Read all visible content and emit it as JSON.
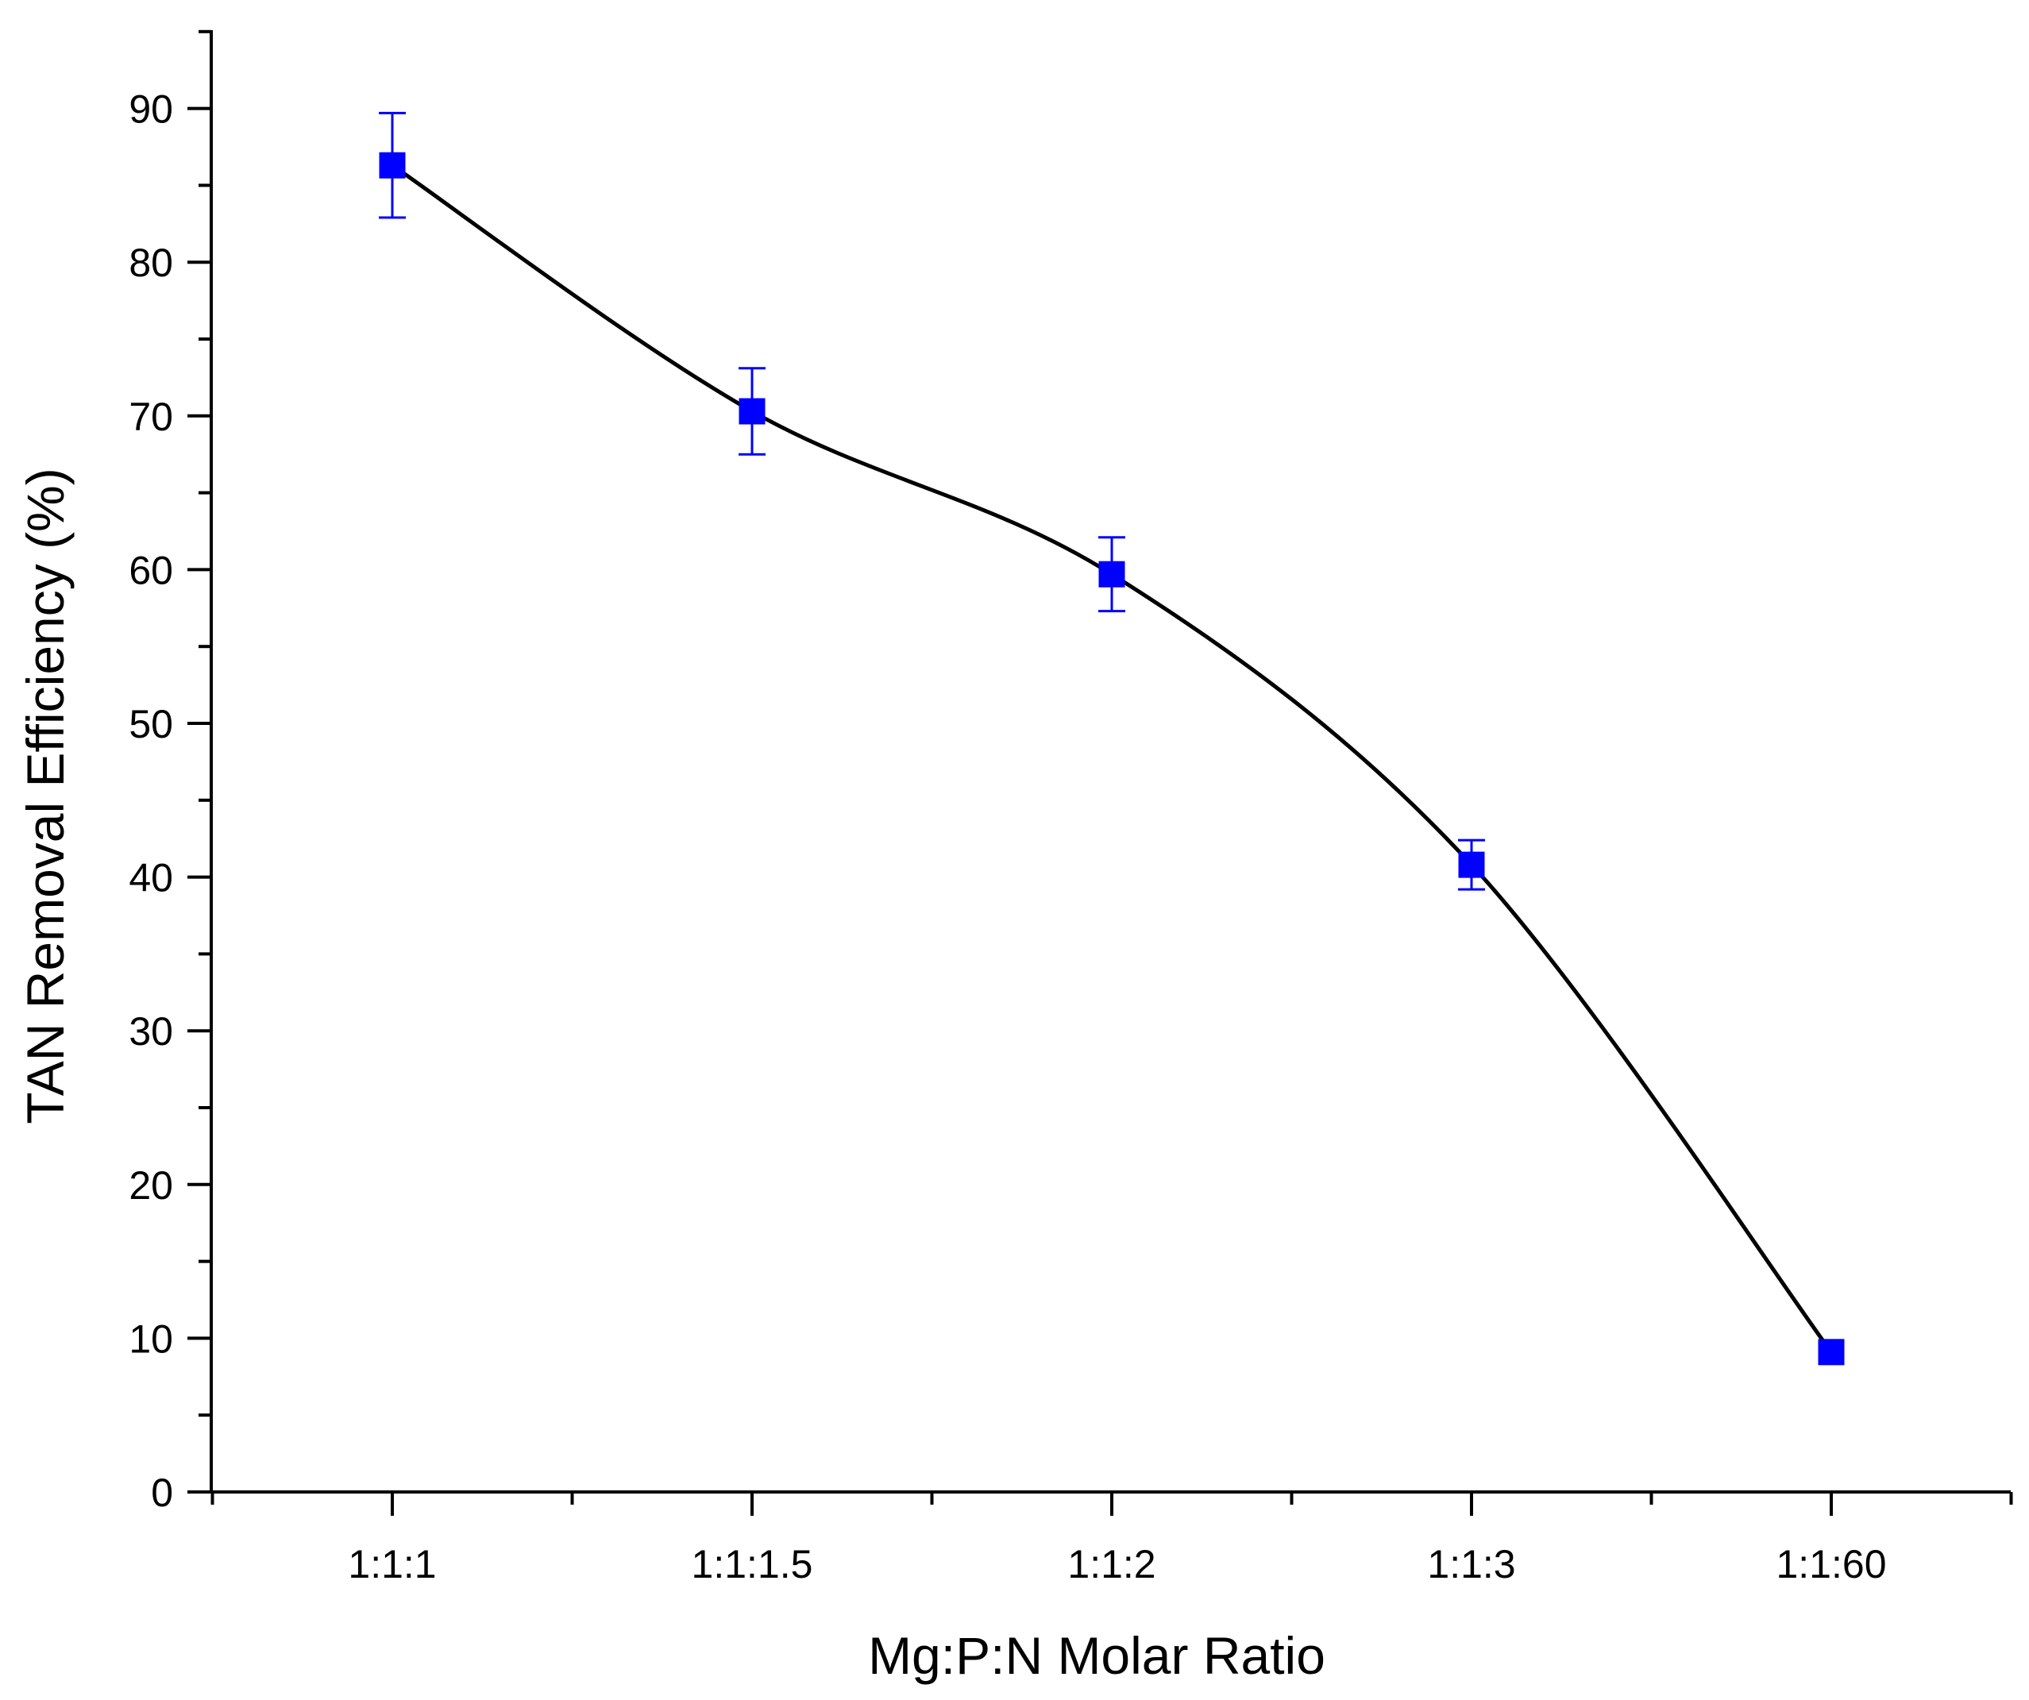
{
  "chart_data": {
    "type": "line",
    "title": "",
    "xlabel": "Mg:P:N Molar Ratio",
    "ylabel": "TAN Removal Efficiency (%)",
    "categories": [
      "1:1:1",
      "1:1:1.5",
      "1:1:2",
      "1:1:3",
      "1:1:60"
    ],
    "ylim": [
      0,
      95
    ],
    "yticks": [
      0,
      10,
      20,
      30,
      40,
      50,
      60,
      70,
      80,
      90
    ],
    "grid": false,
    "series": [
      {
        "name": "TAN Removal Efficiency",
        "values": [
          86.3,
          70.3,
          59.7,
          40.8,
          9.1
        ],
        "errors": [
          3.4,
          2.8,
          2.4,
          1.6,
          0.0
        ],
        "marker": "square",
        "marker_color": "#0000ff",
        "line_color": "#000000",
        "line_style": "smooth"
      }
    ]
  }
}
